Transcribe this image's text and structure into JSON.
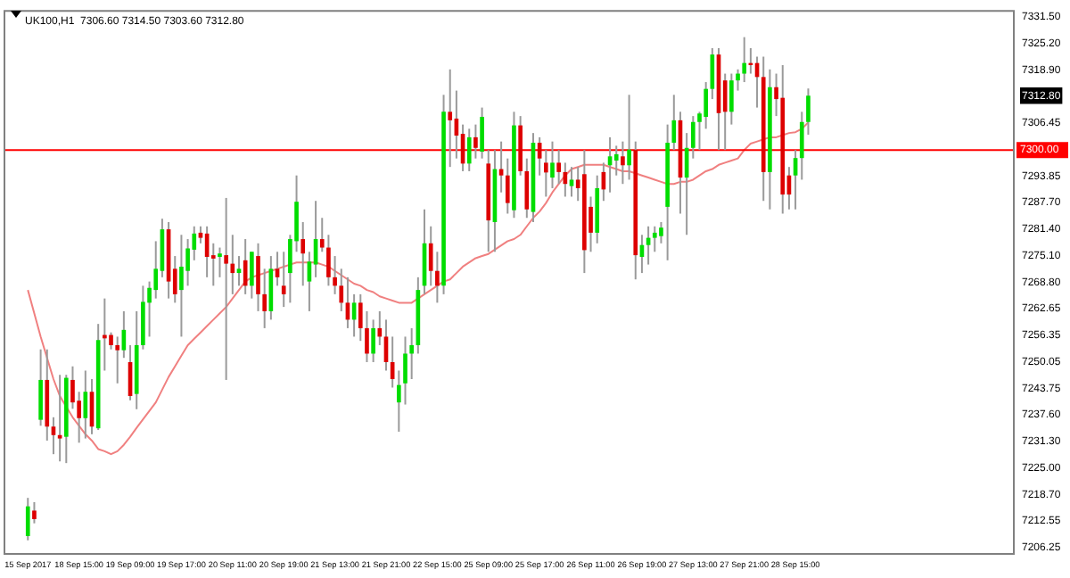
{
  "chart_data": {
    "type": "candlestick",
    "title": "UK100,H1  7306.60 7314.50 7303.60 7312.80",
    "categories": [
      "15 Sep 2017",
      null,
      null,
      null,
      null,
      null,
      null,
      null,
      "18 Sep 15:00",
      null,
      null,
      null,
      null,
      null,
      null,
      null,
      "19 Sep 09:00",
      null,
      null,
      null,
      null,
      null,
      null,
      null,
      "19 Sep 17:00",
      null,
      null,
      null,
      null,
      null,
      null,
      null,
      "20 Sep 11:00",
      null,
      null,
      null,
      null,
      null,
      null,
      null,
      "20 Sep 19:00",
      null,
      null,
      null,
      null,
      null,
      null,
      null,
      "21 Sep 13:00",
      null,
      null,
      null,
      null,
      null,
      null,
      null,
      "21 Sep 21:00",
      null,
      null,
      null,
      null,
      null,
      null,
      null,
      "22 Sep 15:00",
      null,
      null,
      null,
      null,
      null,
      null,
      null,
      "25 Sep 09:00",
      null,
      null,
      null,
      null,
      null,
      null,
      null,
      "25 Sep 17:00",
      null,
      null,
      null,
      null,
      null,
      null,
      null,
      "26 Sep 11:00",
      null,
      null,
      null,
      null,
      null,
      null,
      null,
      "26 Sep 19:00",
      null,
      null,
      null,
      null,
      null,
      null,
      null,
      "27 Sep 13:00",
      null,
      null,
      null,
      null,
      null,
      null,
      null,
      "27 Sep 21:00",
      null,
      null,
      null,
      null,
      null,
      null,
      null,
      "28 Sep 15:00",
      null,
      null
    ],
    "ohlc": [
      [
        7209,
        7218,
        7208,
        7216
      ],
      [
        7215,
        7217,
        7212,
        7213
      ],
      [
        7236.4,
        7253,
        7235,
        7245.8
      ],
      [
        7245.8,
        7253,
        7231.5,
        7234.8
      ],
      [
        7234.8,
        7237,
        7228.3,
        7232.8
      ],
      [
        7232.8,
        7247,
        7226.6,
        7232
      ],
      [
        7232.4,
        7247,
        7226.2,
        7246.3
      ],
      [
        7245.8,
        7249,
        7239,
        7240.5
      ],
      [
        7240.9,
        7243,
        7231,
        7236.8
      ],
      [
        7236.8,
        7248,
        7232,
        7243
      ],
      [
        7243,
        7246,
        7233,
        7234.8
      ],
      [
        7234.4,
        7259,
        7234,
        7255.2
      ],
      [
        7256.4,
        7265,
        7248,
        7255.6
      ],
      [
        7256.4,
        7257,
        7253,
        7254
      ],
      [
        7254,
        7256,
        7245,
        7252.8
      ],
      [
        7252.8,
        7262,
        7251,
        7257.6
      ],
      [
        7250,
        7254,
        7241,
        7242
      ],
      [
        7242.5,
        7262,
        7238.9,
        7254
      ],
      [
        7254,
        7268,
        7253,
        7264.2
      ],
      [
        7264,
        7269,
        7256,
        7267.5
      ],
      [
        7267,
        7278.5,
        7265,
        7272
      ],
      [
        7271.5,
        7283.8,
        7270,
        7281.3
      ],
      [
        7281.3,
        7283,
        7265,
        7269
      ],
      [
        7272,
        7275,
        7264,
        7266
      ],
      [
        7267,
        7280,
        7256,
        7272.5
      ],
      [
        7271.5,
        7279,
        7268,
        7276.8
      ],
      [
        7276.5,
        7282,
        7274,
        7280.3
      ],
      [
        7280.5,
        7282,
        7278,
        7279.3
      ],
      [
        7280.3,
        7282,
        7270,
        7274.8
      ],
      [
        7275.2,
        7278,
        7268,
        7274.4
      ],
      [
        7274.8,
        7277,
        7270,
        7275.6
      ],
      [
        7275.2,
        7288.7,
        7245.8,
        7273.2
      ],
      [
        7273.2,
        7280,
        7266,
        7271
      ],
      [
        7271,
        7275,
        7268,
        7272
      ],
      [
        7274,
        7279,
        7266,
        7268
      ],
      [
        7268,
        7276,
        7265,
        7276
      ],
      [
        7275,
        7278,
        7262,
        7266
      ],
      [
        7266,
        7272,
        7258,
        7262
      ],
      [
        7262,
        7275,
        7260,
        7272
      ],
      [
        7272,
        7276,
        7268,
        7270
      ],
      [
        7268,
        7276,
        7263,
        7266
      ],
      [
        7271,
        7280,
        7264,
        7279
      ],
      [
        7278.5,
        7294,
        7276,
        7287.8
      ],
      [
        7279,
        7283,
        7268,
        7275.6
      ],
      [
        7269,
        7276,
        7262,
        7273.7
      ],
      [
        7273,
        7288,
        7270,
        7279
      ],
      [
        7279,
        7284,
        7276,
        7277
      ],
      [
        7277,
        7280,
        7268,
        7270
      ],
      [
        7270,
        7275,
        7266,
        7268
      ],
      [
        7268,
        7272,
        7262,
        7264
      ],
      [
        7264,
        7270,
        7258,
        7260
      ],
      [
        7260,
        7266,
        7256,
        7264
      ],
      [
        7264,
        7266,
        7255,
        7258
      ],
      [
        7258,
        7262,
        7250,
        7252
      ],
      [
        7252,
        7260,
        7250,
        7258
      ],
      [
        7258,
        7262,
        7254,
        7256
      ],
      [
        7256,
        7260,
        7248,
        7250
      ],
      [
        7250,
        7256,
        7244,
        7246
      ],
      [
        7240.5,
        7248,
        7233.6,
        7244.6
      ],
      [
        7245,
        7256,
        7240,
        7252
      ],
      [
        7252,
        7258,
        7246,
        7254
      ],
      [
        7254,
        7270,
        7252,
        7267
      ],
      [
        7268,
        7286,
        7266,
        7278
      ],
      [
        7278,
        7282,
        7268,
        7271.5
      ],
      [
        7271.5,
        7276,
        7264,
        7268
      ],
      [
        7268,
        7313,
        7266,
        7309
      ],
      [
        7309,
        7319,
        7296,
        7307
      ],
      [
        7307.4,
        7314,
        7298,
        7303.4
      ],
      [
        7303.8,
        7306,
        7295,
        7296.8
      ],
      [
        7296.8,
        7305,
        7295,
        7303
      ],
      [
        7303,
        7306,
        7298,
        7300.5
      ],
      [
        7299.6,
        7310,
        7298,
        7307.8
      ],
      [
        7296.8,
        7300,
        7276,
        7283.4
      ],
      [
        7283,
        7300,
        7276,
        7295.5
      ],
      [
        7295.5,
        7302,
        7290,
        7294
      ],
      [
        7294,
        7298,
        7285,
        7287.5
      ],
      [
        7285.8,
        7309,
        7284,
        7305.8
      ],
      [
        7305.8,
        7308,
        7294,
        7295
      ],
      [
        7295,
        7298,
        7284,
        7286
      ],
      [
        7285.4,
        7304,
        7283,
        7301.7
      ],
      [
        7301.7,
        7303,
        7294,
        7298
      ],
      [
        7297,
        7300,
        7289,
        7294.7
      ],
      [
        7293.5,
        7302,
        7291,
        7297
      ],
      [
        7297,
        7300,
        7292,
        7294.8
      ],
      [
        7294.8,
        7297,
        7289,
        7292
      ],
      [
        7291.5,
        7296,
        7289,
        7293
      ],
      [
        7293,
        7296,
        7288,
        7291
      ],
      [
        7294.3,
        7300,
        7271,
        7276.4
      ],
      [
        7286.6,
        7289,
        7276,
        7280.5
      ],
      [
        7280.5,
        7294,
        7278,
        7291
      ],
      [
        7294.8,
        7297,
        7288,
        7290.7
      ],
      [
        7296.4,
        7303,
        7290,
        7298.5
      ],
      [
        7297.5,
        7301,
        7294,
        7299
      ],
      [
        7298.5,
        7302,
        7292,
        7296.4
      ],
      [
        7296.4,
        7313,
        7293,
        7300.1
      ],
      [
        7300,
        7302,
        7269.5,
        7275.2
      ],
      [
        7274.8,
        7280,
        7271,
        7277.6
      ],
      [
        7277.6,
        7282,
        7273,
        7279.3
      ],
      [
        7279.3,
        7282,
        7276,
        7280.5
      ],
      [
        7279.7,
        7283,
        7278,
        7281.7
      ],
      [
        7286.6,
        7306,
        7274,
        7301.7
      ],
      [
        7301.7,
        7313,
        7300,
        7307
      ],
      [
        7307,
        7309,
        7285,
        7293.5
      ],
      [
        7293.5,
        7304,
        7280,
        7300.5
      ],
      [
        7300.5,
        7308,
        7298,
        7306.6
      ],
      [
        7306.6,
        7309,
        7300,
        7308.6
      ],
      [
        7307.8,
        7316,
        7305,
        7314.4
      ],
      [
        7314.4,
        7324,
        7312,
        7322.5
      ],
      [
        7322.5,
        7324,
        7300,
        7308.7
      ],
      [
        7316.4,
        7318,
        7300,
        7309
      ],
      [
        7309,
        7318,
        7306,
        7316.4
      ],
      [
        7316.4,
        7319,
        7314,
        7318
      ],
      [
        7318,
        7326.6,
        7316,
        7320.5
      ],
      [
        7320.5,
        7324,
        7318,
        7320
      ],
      [
        7320.5,
        7322,
        7310,
        7317.2
      ],
      [
        7317.2,
        7322,
        7288,
        7294.8
      ],
      [
        7294.8,
        7319,
        7286,
        7314.8
      ],
      [
        7314.8,
        7318,
        7308,
        7312
      ],
      [
        7312.3,
        7320,
        7285,
        7289.5
      ],
      [
        7294,
        7296,
        7286,
        7289.5
      ],
      [
        7294,
        7300,
        7286,
        7298.1
      ],
      [
        7298.1,
        7309,
        7293,
        7306.6
      ],
      [
        7306.6,
        7314.5,
        7303.6,
        7312.8
      ]
    ],
    "series": [
      {
        "type": "line",
        "color": "#f08080",
        "values": [
          7267,
          7261.5,
          7256,
          7251,
          7246,
          7242,
          7239.5,
          7237,
          7235,
          7233,
          7231.5,
          7229.5,
          7229,
          7228.3,
          7229,
          7230.5,
          7232.4,
          7234.5,
          7236.5,
          7238.5,
          7240.5,
          7243.5,
          7246.5,
          7249,
          7251.5,
          7254,
          7255.5,
          7257,
          7258.5,
          7260,
          7261.5,
          7263,
          7265,
          7267,
          7269,
          7270,
          7270.5,
          7271,
          7271.5,
          7272,
          7272.5,
          7273,
          7273.5,
          7273.5,
          7273.5,
          7273.5,
          7273,
          7272.5,
          7271.5,
          7270.5,
          7269.5,
          7268.5,
          7268,
          7267,
          7266.5,
          7265.5,
          7265,
          7264.5,
          7264,
          7264,
          7264,
          7265,
          7266,
          7267,
          7268,
          7269,
          7269.5,
          7271,
          7272.5,
          7273.5,
          7274.5,
          7275,
          7275.5,
          7276.5,
          7277.5,
          7278.5,
          7279,
          7280,
          7282,
          7284,
          7285.5,
          7287.5,
          7290,
          7292,
          7294,
          7295.5,
          7296,
          7296.5,
          7296.5,
          7296.5,
          7296.5,
          7296,
          7295.5,
          7295,
          7295,
          7294.5,
          7294,
          7293.5,
          7293,
          7292.5,
          7292,
          7292,
          7292.5,
          7292.5,
          7293,
          7294,
          7295,
          7295.5,
          7296.5,
          7297,
          7297.5,
          7298,
          7300,
          7301.5,
          7302,
          7302.5,
          7303,
          7303,
          7303.5,
          7304,
          7304.2,
          7305,
          7306.5
        ]
      }
    ],
    "ylim": [
      7205,
      7333
    ],
    "yticks": [
      {
        "value": 7331.5,
        "label": "7331.50"
      },
      {
        "value": 7325.2,
        "label": "7325.20"
      },
      {
        "value": 7318.9,
        "label": "7318.90"
      },
      {
        "value": 7312.8,
        "label": "7312.80"
      },
      {
        "value": 7306.45,
        "label": "7306.45"
      },
      {
        "value": 7293.85,
        "label": "7293.85"
      },
      {
        "value": 7287.7,
        "label": "7287.70"
      },
      {
        "value": 7281.4,
        "label": "7281.40"
      },
      {
        "value": 7275.1,
        "label": "7275.10"
      },
      {
        "value": 7268.8,
        "label": "7268.80"
      },
      {
        "value": 7262.65,
        "label": "7262.65"
      },
      {
        "value": 7256.35,
        "label": "7256.35"
      },
      {
        "value": 7250.05,
        "label": "7250.05"
      },
      {
        "value": 7243.75,
        "label": "7243.75"
      },
      {
        "value": 7237.6,
        "label": "7237.60"
      },
      {
        "value": 7231.3,
        "label": "7231.30"
      },
      {
        "value": 7225,
        "label": "7225.00"
      },
      {
        "value": 7218.7,
        "label": "7218.70"
      },
      {
        "value": 7212.55,
        "label": "7212.55"
      },
      {
        "value": 7206.25,
        "label": "7206.25"
      }
    ],
    "ref_lines": [
      {
        "axis": "y",
        "value": 7300,
        "label": "7300.00",
        "color": "#ff0000"
      }
    ],
    "grid": false,
    "legend": false
  }
}
